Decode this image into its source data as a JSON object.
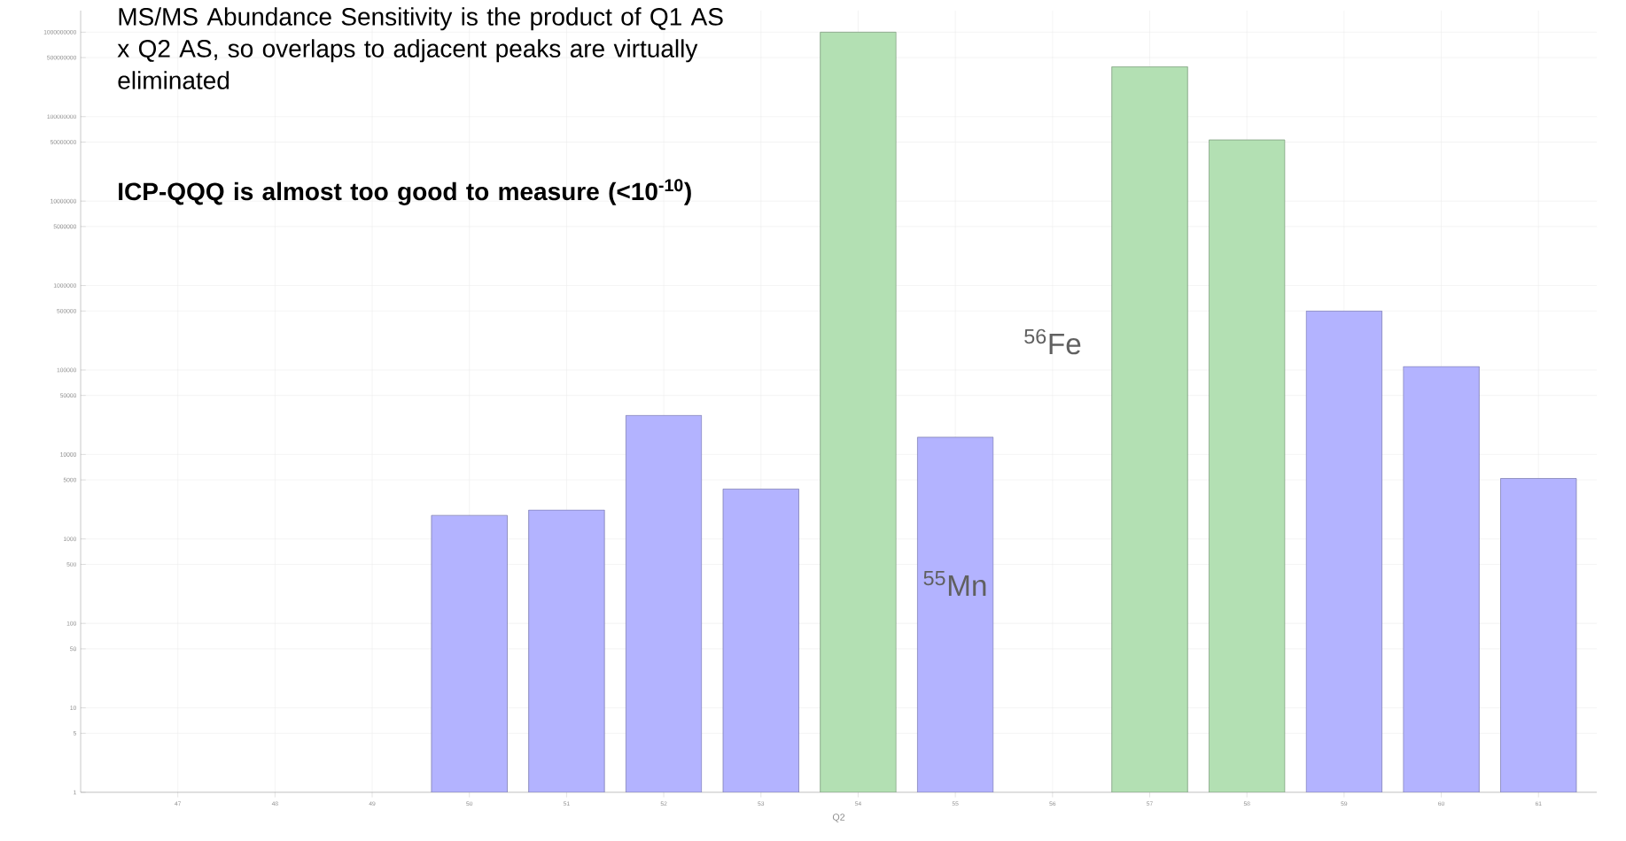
{
  "chart_data": {
    "type": "bar",
    "xlabel": "Q2",
    "categories": [
      "47",
      "48",
      "49",
      "50",
      "51",
      "52",
      "53",
      "54",
      "55",
      "56",
      "57",
      "58",
      "59",
      "60",
      "61"
    ],
    "values": [
      null,
      null,
      null,
      1900,
      2200,
      29000,
      3900,
      1000000000,
      16000,
      null,
      390000000,
      53000000,
      500000,
      110000,
      5200
    ],
    "colors": [
      "#b3b3ff",
      "#b3b3ff",
      "#b3b3ff",
      "#b3b3ff",
      "#b3b3ff",
      "#b3b3ff",
      "#b3b3ff",
      "#b3e0b3",
      "#b3b3ff",
      "#b3b3ff",
      "#b3e0b3",
      "#b3e0b3",
      "#b3b3ff",
      "#b3b3ff",
      "#b3b3ff"
    ],
    "log": true,
    "grid": true,
    "ylim": [
      1,
      1800000000
    ],
    "yticks": [
      1,
      5,
      10,
      50,
      100,
      500,
      1000,
      5000,
      10000,
      50000,
      100000,
      500000,
      1000000,
      5000000,
      10000000,
      50000000,
      100000000,
      500000000,
      1000000000
    ],
    "annotations": [
      "MS/MS Abundance Sensitivity is the product of Q1 AS x Q2 AS, so overlaps to adjacent peaks are virtually eliminated",
      "ICP-QQQ is almost too good to measure (<10$^{-10}$)",
      "$^{56}$Fe",
      "$^{55}$Mn"
    ]
  }
}
